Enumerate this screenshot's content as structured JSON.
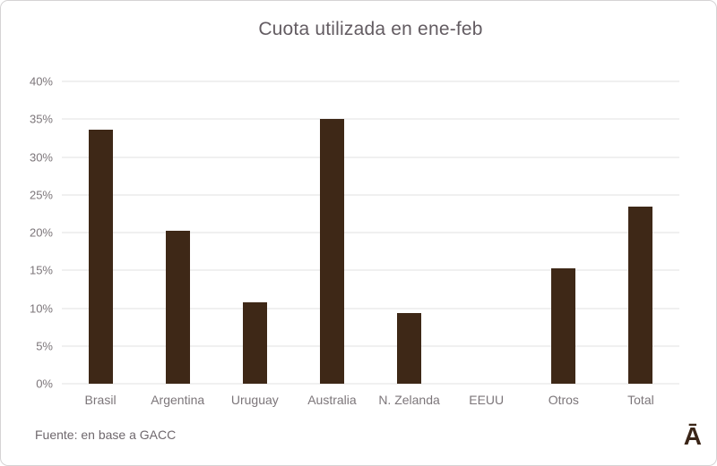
{
  "frame": {
    "background_color": "#ffffff",
    "border_color": "#d5d3d4"
  },
  "chart_data": {
    "type": "bar",
    "title": "Cuota utilizada en ene-feb",
    "categories": [
      "Brasil",
      "Argentina",
      "Uruguay",
      "Australia",
      "N. Zelanda",
      "EEUU",
      "Otros",
      "Total"
    ],
    "values": [
      33.6,
      20.2,
      10.8,
      35.0,
      9.3,
      0,
      15.3,
      23.4
    ],
    "unit": "%",
    "xlabel": "",
    "ylabel": "",
    "ylim": [
      0,
      40
    ],
    "ytick_step": 5,
    "ytick_labels": [
      "0%",
      "5%",
      "10%",
      "15%",
      "20%",
      "25%",
      "30%",
      "35%",
      "40%"
    ],
    "grid": true,
    "legend": "none",
    "bar_color": "#3e2817",
    "gridline_color": "#e2e0e1",
    "axis_label_color": "#7c767a",
    "title_color": "#635c62"
  },
  "footer": {
    "source_text": "Fuente: en base a GACC"
  },
  "logo": {
    "glyph": "Ā",
    "color": "#3a2517"
  }
}
